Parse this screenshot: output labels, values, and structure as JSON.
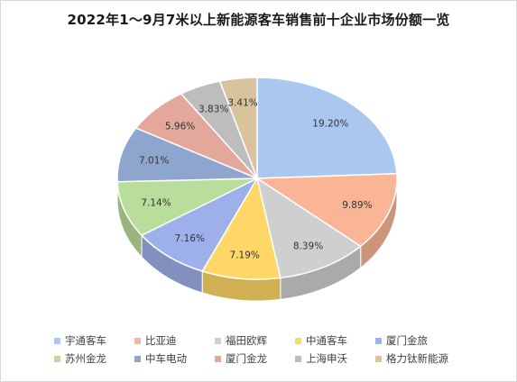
{
  "chart_data": {
    "type": "pie",
    "title": "2022年1～9月7米以上新能源客车销售前十企业市场份额一览",
    "unit": "%",
    "slices": [
      {
        "name": "宇通客车",
        "value": 19.2,
        "label": "19.20%",
        "color": "#a9c7ef"
      },
      {
        "name": "比亚迪",
        "value": 9.89,
        "label": "9.89%",
        "color": "#f9b596"
      },
      {
        "name": "福田欧辉",
        "value": 8.39,
        "label": "8.39%",
        "color": "#cfcfcf"
      },
      {
        "name": "中通客车",
        "value": 7.19,
        "label": "7.19%",
        "color": "#ffd766"
      },
      {
        "name": "厦门金旅",
        "value": 7.16,
        "label": "7.16%",
        "color": "#9eb0ea"
      },
      {
        "name": "苏州金龙",
        "value": 7.14,
        "label": "7.14%",
        "color": "#b9dd9a"
      },
      {
        "name": "中车电动",
        "value": 7.01,
        "label": "7.01%",
        "color": "#8ea6ce"
      },
      {
        "name": "厦门金龙",
        "value": 5.96,
        "label": "5.96%",
        "color": "#e3a89b"
      },
      {
        "name": "上海申沃",
        "value": 3.83,
        "label": "3.83%",
        "color": "#bdbdbd"
      },
      {
        "name": "格力钛新能源",
        "value": 3.41,
        "label": "3.41%",
        "color": "#d8c39c"
      }
    ],
    "legend": {
      "placement": "bottom"
    }
  }
}
